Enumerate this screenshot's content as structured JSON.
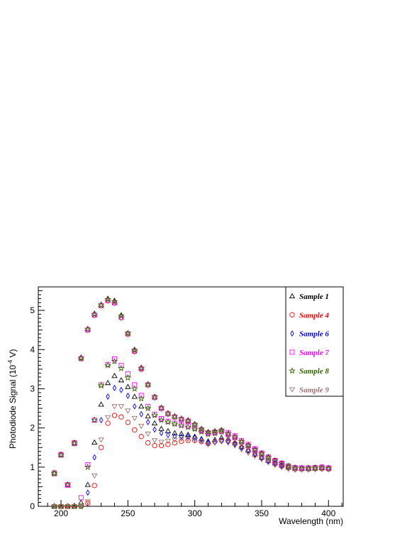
{
  "chart_data": {
    "type": "scatter",
    "xlabel": "Wavelength (nm)",
    "ylabel_parts": [
      "Photodiode Signal (10",
      "-4",
      " V)"
    ],
    "xlim": [
      183,
      411
    ],
    "ylim": [
      0,
      5.6
    ],
    "x_ticks": [
      200,
      250,
      300,
      350,
      400
    ],
    "y_ticks": [
      0,
      1,
      2,
      3,
      4,
      5
    ],
    "legend_position": "top-right",
    "x": [
      195,
      200,
      205,
      210,
      215,
      220,
      225,
      230,
      235,
      240,
      245,
      250,
      255,
      260,
      265,
      270,
      275,
      280,
      285,
      290,
      295,
      300,
      305,
      310,
      315,
      320,
      325,
      330,
      335,
      340,
      345,
      350,
      355,
      360,
      365,
      370,
      375,
      380,
      385,
      390,
      395,
      400
    ],
    "series": [
      {
        "name": "Sample 1",
        "marker": "triangle-up",
        "color": "#000000",
        "values": [
          0.0,
          0.0,
          0.0,
          0.0,
          0.1,
          0.55,
          1.63,
          2.6,
          3.15,
          3.33,
          3.22,
          3.05,
          2.8,
          2.55,
          2.3,
          2.12,
          1.98,
          1.92,
          1.87,
          1.85,
          1.83,
          1.78,
          1.72,
          1.66,
          1.7,
          1.75,
          1.72,
          1.62,
          1.52,
          1.43,
          1.33,
          1.25,
          1.17,
          1.1,
          1.05,
          1.0,
          0.97,
          0.96,
          0.96,
          0.97,
          0.98,
          0.98
        ]
      },
      {
        "name": "Sample 4",
        "marker": "circle",
        "color": "#ff0000",
        "values": [
          0.0,
          0.0,
          0.0,
          0.0,
          0.0,
          0.08,
          0.53,
          1.5,
          2.12,
          2.32,
          2.28,
          2.14,
          1.95,
          1.78,
          1.62,
          1.55,
          1.55,
          1.58,
          1.62,
          1.66,
          1.68,
          1.68,
          1.65,
          1.6,
          1.65,
          1.68,
          1.66,
          1.6,
          1.5,
          1.41,
          1.32,
          1.23,
          1.15,
          1.08,
          1.02,
          0.98,
          0.95,
          0.95,
          0.95,
          0.96,
          0.96,
          0.95
        ]
      },
      {
        "name": "Sample 6",
        "marker": "diamond",
        "color": "#0000ff",
        "values": [
          0.85,
          1.32,
          0.55,
          1.62,
          3.78,
          0.35,
          1.25,
          2.2,
          2.8,
          3.02,
          2.97,
          2.82,
          2.55,
          2.35,
          2.15,
          1.96,
          1.87,
          1.82,
          1.79,
          1.78,
          1.78,
          1.75,
          1.7,
          1.62,
          1.64,
          1.68,
          1.66,
          1.58,
          1.5,
          1.42,
          1.33,
          1.24,
          1.16,
          1.1,
          1.04,
          1.0,
          0.97,
          0.96,
          0.96,
          0.97,
          0.97,
          0.96
        ]
      },
      {
        "name": "Sample 7",
        "marker": "square",
        "color": "#ff00ff",
        "values": [
          0.85,
          1.32,
          0.55,
          1.62,
          0.22,
          1.06,
          2.2,
          3.1,
          3.62,
          3.76,
          3.6,
          3.38,
          3.1,
          2.83,
          2.55,
          2.35,
          2.24,
          2.17,
          2.12,
          2.08,
          2.05,
          2.0,
          1.93,
          1.87,
          1.88,
          1.92,
          1.88,
          1.8,
          1.68,
          1.58,
          1.47,
          1.36,
          1.26,
          1.17,
          1.1,
          1.03,
          0.99,
          0.98,
          0.98,
          0.99,
          1.0,
          0.98
        ]
      },
      {
        "name": "Sample 8",
        "marker": "star",
        "color": "#336600",
        "values": [
          0.0,
          0.0,
          0.0,
          0.0,
          0.0,
          1.0,
          2.2,
          3.08,
          3.6,
          3.7,
          3.52,
          3.28,
          3.0,
          2.75,
          2.5,
          2.32,
          2.2,
          2.15,
          2.1,
          2.06,
          2.02,
          1.97,
          1.9,
          1.84,
          1.86,
          1.9,
          1.85,
          1.77,
          1.65,
          1.56,
          1.45,
          1.35,
          1.25,
          1.16,
          1.09,
          1.02,
          0.98,
          0.97,
          0.97,
          0.98,
          0.99,
          0.97
        ]
      },
      {
        "name": "Sample 9",
        "marker": "triangle-down",
        "color": "#a07070",
        "values": [
          0.0,
          0.0,
          0.0,
          0.0,
          0.0,
          0.12,
          0.78,
          1.7,
          2.27,
          2.55,
          2.55,
          2.44,
          2.25,
          2.05,
          1.85,
          1.68,
          1.64,
          1.67,
          1.7,
          1.72,
          1.72,
          1.7,
          1.65,
          1.58,
          1.62,
          1.65,
          1.62,
          1.55,
          1.45,
          1.36,
          1.28,
          1.2,
          1.12,
          1.05,
          1.0,
          0.95,
          0.93,
          0.93,
          0.93,
          0.94,
          0.95,
          0.94
        ]
      },
      {
        "name": "",
        "marker": "triangle-up",
        "color": "#000000",
        "values": [
          0.85,
          1.32,
          0.55,
          1.62,
          3.8,
          4.53,
          4.92,
          5.15,
          5.3,
          5.25,
          4.88,
          4.42,
          4.0,
          3.54,
          3.12,
          2.8,
          2.52,
          2.38,
          2.3,
          2.24,
          2.2,
          2.1,
          1.98,
          1.9,
          1.92,
          1.95,
          1.86,
          1.78,
          1.66,
          1.56,
          1.45,
          1.35,
          1.25,
          1.17,
          1.1,
          1.03,
          0.99,
          0.98,
          0.98,
          0.99,
          1.0,
          0.98
        ]
      },
      {
        "name": "",
        "marker": "circle",
        "color": "#ff0000",
        "values": [
          0.85,
          1.32,
          0.55,
          1.62,
          3.78,
          4.5,
          4.88,
          5.12,
          5.26,
          5.2,
          4.82,
          4.4,
          3.95,
          3.5,
          3.1,
          2.78,
          2.5,
          2.36,
          2.28,
          2.22,
          2.18,
          2.08,
          1.96,
          1.88,
          1.9,
          1.93,
          1.84,
          1.76,
          1.64,
          1.55,
          1.44,
          1.34,
          1.24,
          1.16,
          1.09,
          1.02,
          0.98,
          0.97,
          0.97,
          0.98,
          0.99,
          0.97
        ]
      },
      {
        "name": "",
        "marker": "square",
        "color": "#ff00ff",
        "values": [
          0.83,
          1.31,
          0.54,
          1.6,
          3.77,
          4.5,
          4.88,
          5.12,
          5.25,
          5.19,
          4.82,
          4.4,
          3.96,
          3.51,
          3.1,
          2.78,
          2.5,
          2.36,
          2.28,
          2.22,
          2.17,
          2.07,
          1.95,
          1.87,
          1.89,
          1.92,
          1.83,
          1.75,
          1.64,
          1.54,
          1.43,
          1.33,
          1.23,
          1.15,
          1.08,
          1.02,
          0.98,
          0.97,
          0.97,
          0.98,
          0.99,
          0.97
        ]
      },
      {
        "name": "",
        "marker": "star",
        "color": "#336600",
        "values": [
          0.84,
          1.31,
          0.55,
          1.61,
          3.78,
          4.52,
          4.9,
          5.14,
          5.28,
          5.22,
          4.86,
          4.42,
          3.98,
          3.52,
          3.11,
          2.79,
          2.51,
          2.37,
          2.29,
          2.23,
          2.18,
          2.09,
          1.97,
          1.89,
          1.91,
          1.94,
          1.85,
          1.77,
          1.65,
          1.55,
          1.44,
          1.34,
          1.24,
          1.16,
          1.09,
          1.02,
          0.98,
          0.97,
          0.97,
          0.98,
          0.99,
          0.97
        ]
      },
      {
        "name": "",
        "marker": "triangle-down",
        "color": "#a07070",
        "values": [
          0.84,
          1.3,
          0.54,
          1.6,
          3.76,
          4.49,
          4.87,
          5.11,
          5.24,
          5.18,
          4.8,
          4.38,
          3.94,
          3.49,
          3.08,
          2.76,
          2.48,
          2.34,
          2.26,
          2.2,
          2.15,
          2.05,
          1.93,
          1.85,
          1.87,
          1.9,
          1.82,
          1.74,
          1.62,
          1.52,
          1.41,
          1.31,
          1.22,
          1.14,
          1.07,
          1.01,
          0.97,
          0.96,
          0.96,
          0.97,
          0.98,
          0.96
        ]
      }
    ]
  }
}
